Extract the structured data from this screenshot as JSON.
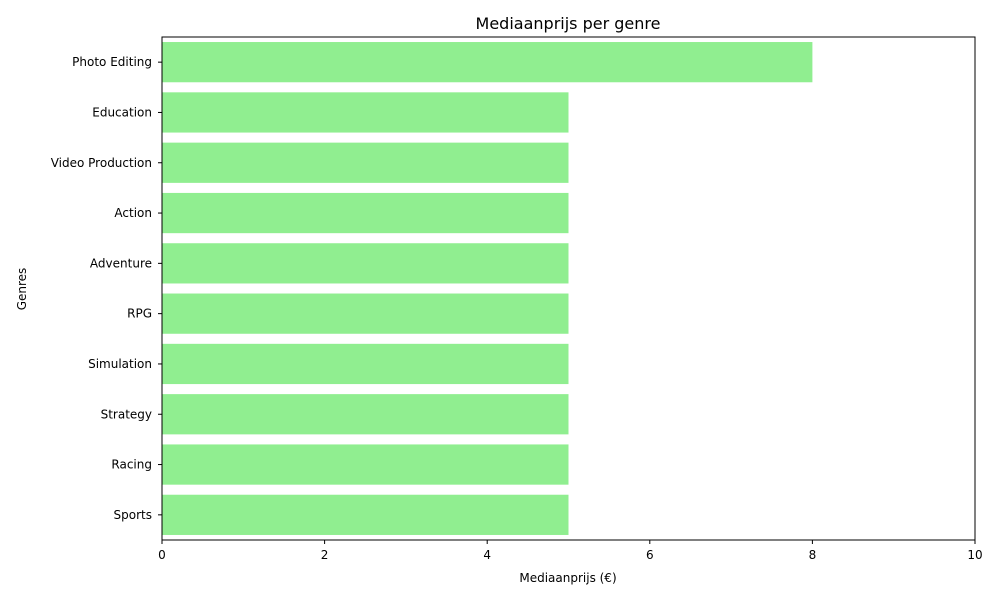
{
  "chart_data": {
    "type": "bar",
    "orientation": "horizontal",
    "title": "Mediaanprijs per genre",
    "xlabel": "Mediaanprijs (€)",
    "ylabel": "Genres",
    "categories": [
      "Photo Editing",
      "Education",
      "Video Production",
      "Action",
      "Adventure",
      "RPG",
      "Simulation",
      "Strategy",
      "Racing",
      "Sports"
    ],
    "values": [
      8,
      5,
      5,
      5,
      5,
      5,
      5,
      5,
      5,
      5
    ],
    "xlim": [
      0,
      10
    ],
    "xticks": [
      0,
      2,
      4,
      6,
      8,
      10
    ],
    "bar_color": "#90ee90",
    "grid": false,
    "legend": "none"
  }
}
